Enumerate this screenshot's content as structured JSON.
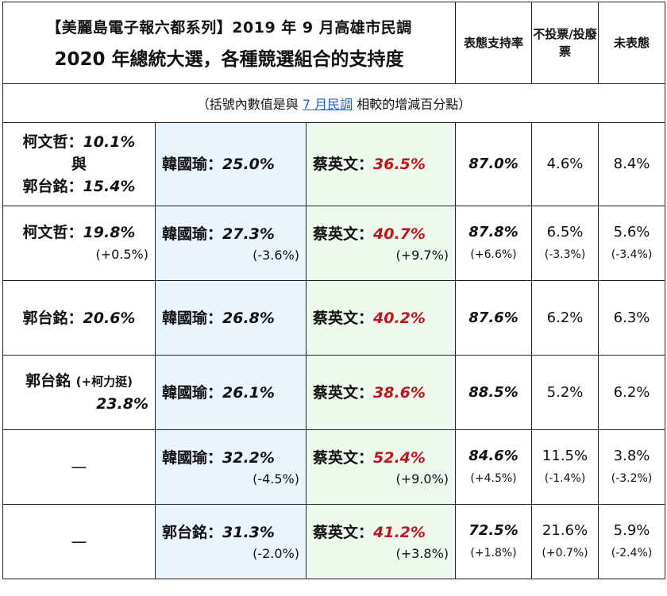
{
  "title_line1": "【美麗島電子報六都系列】2019 年 9 月高雄市民調",
  "title_line2": "2020 年總統大選，各種競選組合的支持度",
  "headers": {
    "support": "表態支持率",
    "novote": "不投票/投廢票",
    "undecided": "未表態"
  },
  "note": {
    "pre": "（括號內數值是與 ",
    "link": "7 月民調",
    "post": " 相較的增減百分點）"
  },
  "rows": [
    {
      "c0": {
        "name1": "柯文哲：",
        "pct1": "10.1%",
        "mid": "與",
        "name2": "郭台銘：",
        "pct2": "15.4%"
      },
      "blue": {
        "name": "韓國瑜：",
        "pct": "25.0%",
        "chg": ""
      },
      "green": {
        "name": "蔡英文：",
        "pct": "36.5%",
        "chg": ""
      },
      "support": "87.0%",
      "support_chg": "",
      "novote": "4.6%",
      "novote_chg": "",
      "undecided": "8.4%",
      "undecided_chg": ""
    },
    {
      "c0": {
        "name": "柯文哲：",
        "pct": "19.8%",
        "chg": "(+0.5%)"
      },
      "blue": {
        "name": "韓國瑜：",
        "pct": "27.3%",
        "chg": "(-3.6%)"
      },
      "green": {
        "name": "蔡英文：",
        "pct": "40.7%",
        "chg": "(+9.7%)"
      },
      "support": "87.8%",
      "support_chg": "(+6.6%)",
      "novote": "6.5%",
      "novote_chg": "(-3.3%)",
      "undecided": "5.6%",
      "undecided_chg": "(-3.4%)"
    },
    {
      "c0": {
        "name": "郭台銘：",
        "pct": "20.6%"
      },
      "blue": {
        "name": "韓國瑜：",
        "pct": "26.8%"
      },
      "green": {
        "name": "蔡英文：",
        "pct": "40.2%"
      },
      "support": "87.6%",
      "novote": "6.2%",
      "undecided": "6.3%"
    },
    {
      "c0": {
        "name": "郭台銘 ",
        "sub": "(+柯力挺)",
        "pct": "23.8%"
      },
      "blue": {
        "name": "韓國瑜：",
        "pct": "26.1%"
      },
      "green": {
        "name": "蔡英文：",
        "pct": "38.6%"
      },
      "support": "88.5%",
      "novote": "5.2%",
      "undecided": "6.2%"
    },
    {
      "c0": {
        "dash": "—"
      },
      "blue": {
        "name": "韓國瑜：",
        "pct": "32.2%",
        "chg": "(-4.5%)"
      },
      "green": {
        "name": "蔡英文：",
        "pct": "52.4%",
        "chg": "(+9.0%)"
      },
      "support": "84.6%",
      "support_chg": "(+4.5%)",
      "novote": "11.5%",
      "novote_chg": "(-1.4%)",
      "undecided": "3.8%",
      "undecided_chg": "(-3.2%)"
    },
    {
      "c0": {
        "dash": "—"
      },
      "blue": {
        "name": "郭台銘：",
        "pct": "31.3%",
        "chg": "(-2.0%)"
      },
      "green": {
        "name": "蔡英文：",
        "pct": "41.2%",
        "chg": "(+3.8%)"
      },
      "support": "72.5%",
      "support_chg": "(+1.8%)",
      "novote": "21.6%",
      "novote_chg": "(+0.7%)",
      "undecided": "5.9%",
      "undecided_chg": "(-2.4%)"
    }
  ]
}
